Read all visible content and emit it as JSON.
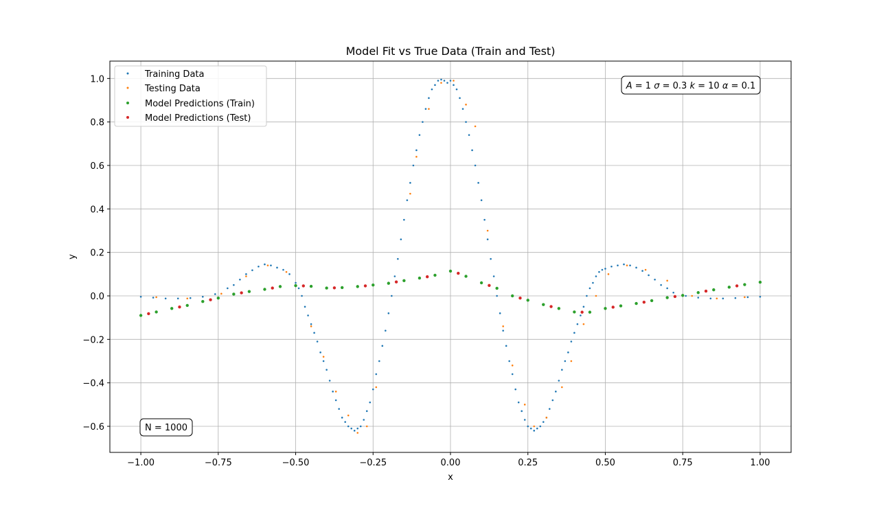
{
  "chart_data": {
    "type": "scatter",
    "title": "Model Fit vs True Data (Train and Test)",
    "xlabel": "x",
    "ylabel": "y",
    "xlim": [
      -1.1,
      1.1
    ],
    "ylim": [
      -0.72,
      1.08
    ],
    "grid": true,
    "legend_position": "top-left",
    "xticks": [
      {
        "value": -1.0,
        "label": "−1.00"
      },
      {
        "value": -0.75,
        "label": "−0.75"
      },
      {
        "value": -0.5,
        "label": "−0.50"
      },
      {
        "value": -0.25,
        "label": "−0.25"
      },
      {
        "value": 0.0,
        "label": "0.00"
      },
      {
        "value": 0.25,
        "label": "0.25"
      },
      {
        "value": 0.5,
        "label": "0.50"
      },
      {
        "value": 0.75,
        "label": "0.75"
      },
      {
        "value": 1.0,
        "label": "1.00"
      }
    ],
    "yticks": [
      {
        "value": -0.6,
        "label": "−0.6"
      },
      {
        "value": -0.4,
        "label": "−0.4"
      },
      {
        "value": -0.2,
        "label": "−0.2"
      },
      {
        "value": 0.0,
        "label": "0.0"
      },
      {
        "value": 0.2,
        "label": "0.2"
      },
      {
        "value": 0.4,
        "label": "0.4"
      },
      {
        "value": 0.6,
        "label": "0.6"
      },
      {
        "value": 0.8,
        "label": "0.8"
      },
      {
        "value": 1.0,
        "label": "1.0"
      }
    ],
    "annotations": {
      "params": {
        "A": "1",
        "sigma": "0.3",
        "k": "10",
        "alpha": "0.1"
      },
      "sample_count": "N = 1000"
    },
    "series": [
      {
        "name": "Training Data",
        "color": "#1f77b4",
        "x": [
          -1.0,
          -0.96,
          -0.92,
          -0.88,
          -0.84,
          -0.8,
          -0.76,
          -0.72,
          -0.7,
          -0.68,
          -0.66,
          -0.64,
          -0.62,
          -0.6,
          -0.58,
          -0.56,
          -0.54,
          -0.52,
          -0.5,
          -0.49,
          -0.48,
          -0.47,
          -0.46,
          -0.45,
          -0.44,
          -0.43,
          -0.42,
          -0.41,
          -0.4,
          -0.39,
          -0.38,
          -0.37,
          -0.36,
          -0.35,
          -0.34,
          -0.33,
          -0.32,
          -0.31,
          -0.3,
          -0.29,
          -0.28,
          -0.27,
          -0.26,
          -0.25,
          -0.24,
          -0.23,
          -0.22,
          -0.21,
          -0.2,
          -0.19,
          -0.18,
          -0.17,
          -0.16,
          -0.15,
          -0.14,
          -0.13,
          -0.12,
          -0.11,
          -0.1,
          -0.09,
          -0.08,
          -0.07,
          -0.06,
          -0.05,
          -0.04,
          -0.03,
          -0.02,
          -0.01,
          0.0,
          0.01,
          0.02,
          0.03,
          0.04,
          0.05,
          0.06,
          0.07,
          0.08,
          0.09,
          0.1,
          0.11,
          0.12,
          0.13,
          0.14,
          0.15,
          0.16,
          0.17,
          0.18,
          0.19,
          0.2,
          0.21,
          0.22,
          0.23,
          0.24,
          0.25,
          0.26,
          0.27,
          0.28,
          0.29,
          0.3,
          0.31,
          0.32,
          0.33,
          0.34,
          0.35,
          0.36,
          0.37,
          0.38,
          0.39,
          0.4,
          0.41,
          0.42,
          0.43,
          0.44,
          0.45,
          0.46,
          0.47,
          0.48,
          0.49,
          0.5,
          0.52,
          0.54,
          0.56,
          0.58,
          0.6,
          0.62,
          0.64,
          0.66,
          0.68,
          0.7,
          0.72,
          0.76,
          0.8,
          0.84,
          0.88,
          0.92,
          0.96,
          1.0
        ],
        "y": [
          -0.004,
          -0.008,
          -0.012,
          -0.012,
          -0.01,
          -0.004,
          0.008,
          0.035,
          0.05,
          0.075,
          0.1,
          0.118,
          0.135,
          0.145,
          0.14,
          0.13,
          0.12,
          0.1,
          0.06,
          0.035,
          0.0,
          -0.05,
          -0.09,
          -0.13,
          -0.17,
          -0.21,
          -0.26,
          -0.3,
          -0.34,
          -0.39,
          -0.44,
          -0.48,
          -0.52,
          -0.56,
          -0.58,
          -0.6,
          -0.61,
          -0.62,
          -0.61,
          -0.6,
          -0.57,
          -0.53,
          -0.49,
          -0.43,
          -0.36,
          -0.3,
          -0.23,
          -0.16,
          -0.08,
          0.0,
          0.09,
          0.17,
          0.26,
          0.35,
          0.44,
          0.52,
          0.6,
          0.67,
          0.74,
          0.8,
          0.86,
          0.91,
          0.95,
          0.97,
          0.99,
          0.995,
          0.99,
          0.98,
          0.99,
          0.97,
          0.95,
          0.91,
          0.86,
          0.8,
          0.74,
          0.67,
          0.6,
          0.52,
          0.44,
          0.35,
          0.26,
          0.17,
          0.09,
          0.0,
          -0.08,
          -0.16,
          -0.23,
          -0.3,
          -0.36,
          -0.43,
          -0.49,
          -0.53,
          -0.57,
          -0.6,
          -0.61,
          -0.62,
          -0.61,
          -0.6,
          -0.58,
          -0.56,
          -0.52,
          -0.48,
          -0.44,
          -0.39,
          -0.34,
          -0.3,
          -0.26,
          -0.21,
          -0.17,
          -0.13,
          -0.09,
          -0.05,
          0.0,
          0.035,
          0.06,
          0.09,
          0.11,
          0.12,
          0.125,
          0.135,
          0.14,
          0.145,
          0.14,
          0.13,
          0.115,
          0.095,
          0.075,
          0.05,
          0.035,
          0.015,
          0.0,
          -0.008,
          -0.012,
          -0.012,
          -0.01,
          -0.006,
          -0.004
        ]
      },
      {
        "name": "Testing Data",
        "color": "#ff7f0e",
        "x": [
          -0.95,
          -0.85,
          -0.74,
          -0.66,
          -0.59,
          -0.53,
          -0.45,
          -0.41,
          -0.37,
          -0.33,
          -0.3,
          -0.27,
          -0.24,
          -0.13,
          -0.11,
          -0.07,
          -0.03,
          0.01,
          0.05,
          0.08,
          0.12,
          0.17,
          0.2,
          0.24,
          0.27,
          0.31,
          0.36,
          0.39,
          0.43,
          0.47,
          0.51,
          0.57,
          0.63,
          0.7,
          0.78,
          0.86,
          0.95
        ],
        "y": [
          -0.006,
          -0.012,
          0.01,
          0.09,
          0.14,
          0.11,
          -0.14,
          -0.28,
          -0.44,
          -0.55,
          -0.63,
          -0.6,
          -0.42,
          0.47,
          0.64,
          0.86,
          0.98,
          0.99,
          0.88,
          0.78,
          0.3,
          -0.14,
          -0.32,
          -0.5,
          -0.6,
          -0.56,
          -0.42,
          -0.3,
          -0.13,
          0.0,
          0.1,
          0.14,
          0.12,
          0.07,
          0.0,
          -0.012,
          -0.006
        ]
      },
      {
        "name": "Model Predictions (Train)",
        "color": "#2ca02c",
        "x": [
          -1.0,
          -0.95,
          -0.9,
          -0.85,
          -0.8,
          -0.75,
          -0.7,
          -0.65,
          -0.6,
          -0.55,
          -0.5,
          -0.45,
          -0.4,
          -0.35,
          -0.3,
          -0.25,
          -0.2,
          -0.15,
          -0.1,
          -0.05,
          0.0,
          0.05,
          0.1,
          0.15,
          0.2,
          0.25,
          0.3,
          0.35,
          0.4,
          0.45,
          0.5,
          0.55,
          0.6,
          0.65,
          0.7,
          0.75,
          0.8,
          0.85,
          0.9,
          0.95,
          1.0
        ],
        "y": [
          -0.09,
          -0.074,
          -0.058,
          -0.044,
          -0.026,
          -0.01,
          0.008,
          0.02,
          0.03,
          0.043,
          0.047,
          0.044,
          0.036,
          0.038,
          0.043,
          0.05,
          0.058,
          0.07,
          0.082,
          0.095,
          0.114,
          0.09,
          0.06,
          0.035,
          0.0,
          -0.02,
          -0.04,
          -0.058,
          -0.074,
          -0.075,
          -0.058,
          -0.046,
          -0.035,
          -0.022,
          -0.008,
          0.002,
          0.015,
          0.028,
          0.04,
          0.052,
          0.063
        ]
      },
      {
        "name": "Model Predictions (Test)",
        "color": "#d62728",
        "x": [
          -0.975,
          -0.875,
          -0.775,
          -0.675,
          -0.575,
          -0.475,
          -0.375,
          -0.275,
          -0.175,
          -0.075,
          0.025,
          0.125,
          0.225,
          0.325,
          0.425,
          0.525,
          0.625,
          0.725,
          0.825,
          0.925
        ],
        "y": [
          -0.082,
          -0.051,
          -0.018,
          0.014,
          0.036,
          0.046,
          0.037,
          0.046,
          0.064,
          0.088,
          0.104,
          0.048,
          -0.01,
          -0.049,
          -0.075,
          -0.052,
          -0.029,
          -0.003,
          0.022,
          0.046
        ]
      }
    ]
  }
}
